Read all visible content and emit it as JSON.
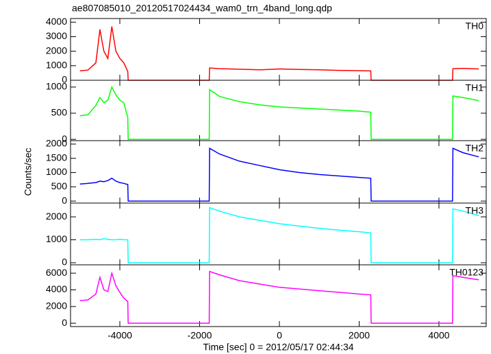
{
  "chart_data": [
    {
      "type": "line",
      "title": "ae807085010_20120517024434_wam0_trn_4band_long.qdp",
      "series": [
        {
          "name": "TH0",
          "color": "#ff0000",
          "x": [
            -5000,
            -4800,
            -4600,
            -4500,
            -4400,
            -4300,
            -4200,
            -4100,
            -4000,
            -3900,
            -3800,
            -3790,
            -2000,
            -1760,
            -1750,
            -1500,
            -1000,
            -500,
            0,
            500,
            1000,
            1500,
            2000,
            2290,
            2300,
            3000,
            4340,
            4350,
            4600,
            5000
          ],
          "values": [
            650,
            700,
            1200,
            3500,
            2000,
            1500,
            3700,
            2000,
            1500,
            1200,
            600,
            0,
            0,
            0,
            850,
            800,
            760,
            720,
            780,
            740,
            720,
            680,
            660,
            640,
            0,
            0,
            0,
            800,
            820,
            780
          ]
        }
      ],
      "ylim": [
        0,
        4250
      ],
      "yticks": [
        0,
        1000,
        2000,
        3000,
        4000
      ]
    },
    {
      "type": "line",
      "series": [
        {
          "name": "TH1",
          "color": "#00ff00",
          "x": [
            -5000,
            -4800,
            -4600,
            -4500,
            -4400,
            -4300,
            -4200,
            -4100,
            -4000,
            -3900,
            -3800,
            -3790,
            -2000,
            -1760,
            -1750,
            -1500,
            -1000,
            -500,
            0,
            500,
            1000,
            1500,
            2000,
            2290,
            2300,
            3000,
            4340,
            4350,
            4600,
            5000
          ],
          "values": [
            450,
            470,
            650,
            800,
            700,
            750,
            1000,
            850,
            750,
            700,
            420,
            0,
            0,
            0,
            950,
            820,
            720,
            660,
            620,
            600,
            580,
            560,
            540,
            520,
            0,
            0,
            0,
            830,
            800,
            740
          ]
        }
      ],
      "ylim": [
        -25,
        1130
      ],
      "yticks": [
        0,
        500,
        1000
      ]
    },
    {
      "type": "line",
      "ylabel": "Counts/sec",
      "series": [
        {
          "name": "TH2",
          "color": "#0000ff",
          "x": [
            -5000,
            -4800,
            -4600,
            -4500,
            -4400,
            -4300,
            -4200,
            -4100,
            -4000,
            -3900,
            -3800,
            -3790,
            -2000,
            -1760,
            -1750,
            -1500,
            -1000,
            -500,
            0,
            500,
            1000,
            1500,
            2000,
            2290,
            2300,
            3000,
            4340,
            4350,
            4600,
            5000
          ],
          "values": [
            600,
            620,
            650,
            700,
            680,
            720,
            800,
            700,
            650,
            620,
            580,
            0,
            0,
            0,
            1850,
            1650,
            1400,
            1250,
            1100,
            1000,
            930,
            880,
            830,
            800,
            0,
            0,
            0,
            1850,
            1700,
            1550
          ]
        }
      ],
      "ylim": [
        -70,
        2120
      ],
      "yticks": [
        0,
        500,
        1000,
        1500,
        2000
      ]
    },
    {
      "type": "line",
      "series": [
        {
          "name": "TH3",
          "color": "#00ffff",
          "x": [
            -5000,
            -4800,
            -4600,
            -4500,
            -4400,
            -4300,
            -4200,
            -4100,
            -4000,
            -3900,
            -3800,
            -3790,
            -2000,
            -1760,
            -1750,
            -1500,
            -1000,
            -500,
            0,
            500,
            1000,
            1500,
            2000,
            2290,
            2300,
            3000,
            4340,
            4350,
            4600,
            5000
          ],
          "values": [
            1000,
            1000,
            1020,
            1000,
            1050,
            1020,
            1000,
            1000,
            1020,
            1000,
            1000,
            0,
            0,
            0,
            2400,
            2250,
            2000,
            1850,
            1700,
            1600,
            1500,
            1420,
            1350,
            1300,
            0,
            0,
            0,
            2350,
            2250,
            2050
          ]
        }
      ],
      "ylim": [
        -90,
        2600
      ],
      "yticks": [
        0,
        1000,
        2000
      ]
    },
    {
      "type": "line",
      "xlabel": "Time [sec] 0 = 2012/05/17 02:44:34",
      "series": [
        {
          "name": "TH0123",
          "color": "#ff00ff",
          "x": [
            -5000,
            -4800,
            -4600,
            -4500,
            -4400,
            -4300,
            -4200,
            -4100,
            -4000,
            -3900,
            -3800,
            -3790,
            -2000,
            -1760,
            -1750,
            -1500,
            -1000,
            -500,
            0,
            500,
            1000,
            1500,
            2000,
            2290,
            2300,
            3000,
            4340,
            4350,
            4600,
            5000
          ],
          "values": [
            2700,
            2800,
            3500,
            5500,
            4000,
            3800,
            6000,
            4500,
            3700,
            3000,
            2600,
            0,
            0,
            0,
            6200,
            5800,
            5100,
            4700,
            4300,
            4100,
            3900,
            3700,
            3500,
            3400,
            0,
            0,
            0,
            5700,
            5500,
            5200
          ]
        }
      ],
      "ylim": [
        -400,
        7000
      ],
      "yticks": [
        0,
        2000,
        4000,
        6000
      ],
      "xlim": [
        -5236,
        5185
      ],
      "xticks": [
        -4000,
        -2000,
        0,
        2000,
        4000
      ]
    }
  ]
}
